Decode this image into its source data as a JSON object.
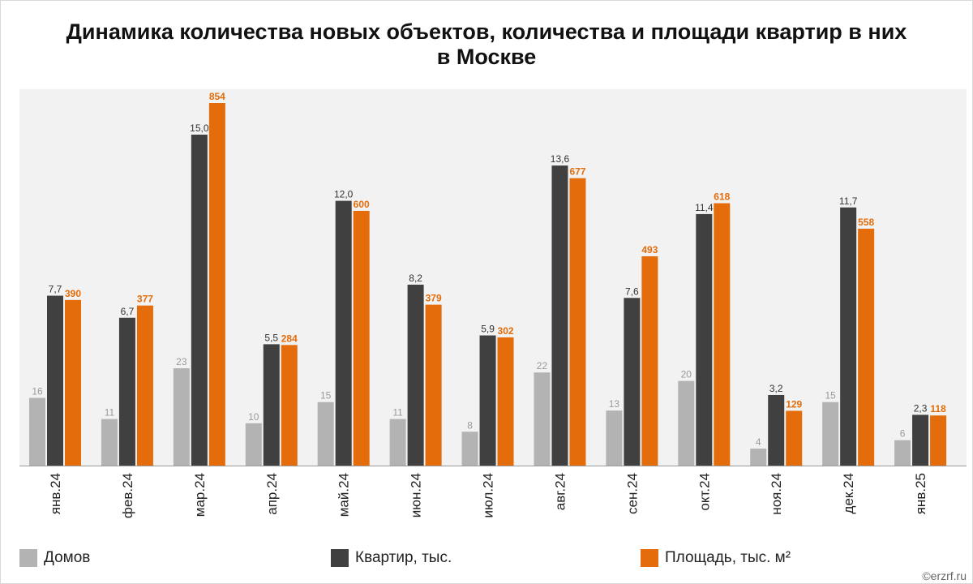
{
  "title_line1": "Динамика количества новых объектов, количества и площади квартир в них",
  "title_line2": "в Москве",
  "watermark": "©erzrf.ru",
  "colors": {
    "houses": "#b3b3b3",
    "flats": "#404040",
    "area": "#e46c0a",
    "plot_bg": "#f2f2f2"
  },
  "chart_data": {
    "type": "bar",
    "categories": [
      "янв.24",
      "фев.24",
      "мар.24",
      "апр.24",
      "май.24",
      "июн.24",
      "июл.24",
      "авг.24",
      "сен.24",
      "окт.24",
      "ноя.24",
      "дек.24",
      "янв.25"
    ],
    "series": [
      {
        "name": "Домов",
        "values": [
          16,
          11,
          23,
          10,
          15,
          11,
          8,
          22,
          13,
          20,
          4,
          15,
          6
        ],
        "labels": [
          "16",
          "11",
          "23",
          "10",
          "15",
          "11",
          "8",
          "22",
          "13",
          "20",
          "4",
          "15",
          "6"
        ]
      },
      {
        "name": "Квартир, тыс.",
        "values": [
          7.7,
          6.7,
          15.0,
          5.5,
          12.0,
          8.2,
          5.9,
          13.6,
          7.6,
          11.4,
          3.2,
          11.7,
          2.3
        ],
        "labels": [
          "7,7",
          "6,7",
          "15,0",
          "5,5",
          "12,0",
          "8,2",
          "5,9",
          "13,6",
          "7,6",
          "11,4",
          "3,2",
          "11,7",
          "2,3"
        ]
      },
      {
        "name": "Площадь, тыс. м²",
        "values": [
          390,
          377,
          854,
          284,
          600,
          379,
          302,
          677,
          493,
          618,
          129,
          558,
          118
        ],
        "labels": [
          "390",
          "377",
          "854",
          "284",
          "600",
          "379",
          "302",
          "677",
          "493",
          "618",
          "129",
          "558",
          "118"
        ]
      }
    ],
    "legend": "bottom",
    "grid": false
  }
}
